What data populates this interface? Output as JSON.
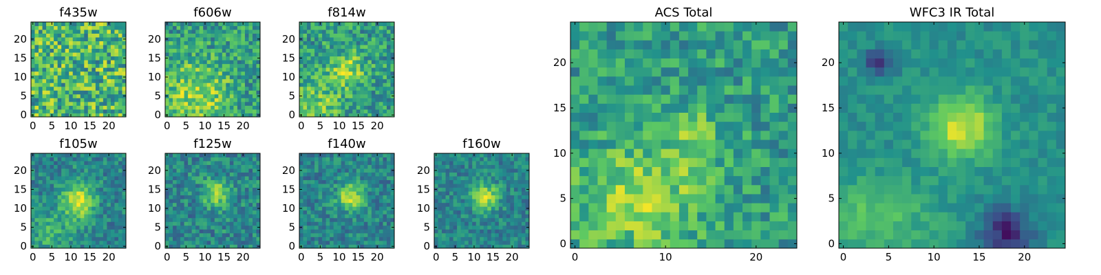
{
  "figure": {
    "colormap": "viridis",
    "colormap_stops": [
      "#440154",
      "#3b528b",
      "#21918c",
      "#5ec962",
      "#fde725"
    ]
  },
  "chart_data": [
    {
      "type": "heatmap",
      "title": "f435w",
      "grid_size": 25,
      "xlim": [
        0,
        24
      ],
      "ylim": [
        0,
        24
      ],
      "x_ticks": [
        0,
        5,
        10,
        15,
        20
      ],
      "y_ticks": [
        0,
        5,
        10,
        15,
        20
      ],
      "pattern": {
        "noise": 0.3,
        "base": 0.66,
        "blob": {
          "cx": 0,
          "cy": 0,
          "sx": 1,
          "sy": 1,
          "amp": 0
        },
        "extras": []
      }
    },
    {
      "type": "heatmap",
      "title": "f606w",
      "grid_size": 25,
      "xlim": [
        0,
        24
      ],
      "ylim": [
        0,
        24
      ],
      "x_ticks": [
        0,
        5,
        10,
        15,
        20
      ],
      "y_ticks": [
        0,
        5,
        10,
        15,
        20
      ],
      "pattern": {
        "noise": 0.22,
        "base": 0.55,
        "blob": {
          "cx": 8,
          "cy": 6,
          "sx": 6,
          "sy": 6,
          "amp": 0.3
        },
        "extras": []
      }
    },
    {
      "type": "heatmap",
      "title": "f814w",
      "grid_size": 25,
      "xlim": [
        0,
        24
      ],
      "ylim": [
        0,
        24
      ],
      "x_ticks": [
        0,
        5,
        10,
        15,
        20
      ],
      "y_ticks": [
        0,
        5,
        10,
        15,
        20
      ],
      "pattern": {
        "noise": 0.22,
        "base": 0.56,
        "blob": {
          "cx": 12,
          "cy": 12,
          "sx": 3,
          "sy": 3,
          "amp": 0.3
        },
        "extras": [
          {
            "cx": 4,
            "cy": 4,
            "sx": 5,
            "sy": 4,
            "amp": 0.2
          }
        ]
      }
    },
    {
      "type": "heatmap",
      "title": "f105w",
      "grid_size": 25,
      "xlim": [
        0,
        24
      ],
      "ylim": [
        0,
        24
      ],
      "x_ticks": [
        0,
        5,
        10,
        15,
        20
      ],
      "y_ticks": [
        0,
        5,
        10,
        15,
        20
      ],
      "pattern": {
        "noise": 0.16,
        "base": 0.45,
        "blob": {
          "cx": 12,
          "cy": 12,
          "sx": 3,
          "sy": 4,
          "amp": 0.45
        },
        "extras": [
          {
            "cx": 4,
            "cy": 4,
            "sx": 4,
            "sy": 4,
            "amp": 0.2
          }
        ]
      }
    },
    {
      "type": "heatmap",
      "title": "f125w",
      "grid_size": 25,
      "xlim": [
        0,
        24
      ],
      "ylim": [
        0,
        24
      ],
      "x_ticks": [
        0,
        5,
        10,
        15,
        20
      ],
      "y_ticks": [
        0,
        5,
        10,
        15,
        20
      ],
      "pattern": {
        "noise": 0.18,
        "base": 0.46,
        "blob": {
          "cx": 13,
          "cy": 14,
          "sx": 2.5,
          "sy": 2.5,
          "amp": 0.4
        },
        "extras": []
      }
    },
    {
      "type": "heatmap",
      "title": "f140w",
      "grid_size": 25,
      "xlim": [
        0,
        24
      ],
      "ylim": [
        0,
        24
      ],
      "x_ticks": [
        0,
        5,
        10,
        15,
        20
      ],
      "y_ticks": [
        0,
        5,
        10,
        15,
        20
      ],
      "pattern": {
        "noise": 0.16,
        "base": 0.45,
        "blob": {
          "cx": 13,
          "cy": 13,
          "sx": 2.5,
          "sy": 2.5,
          "amp": 0.45
        },
        "extras": []
      }
    },
    {
      "type": "heatmap",
      "title": "f160w",
      "grid_size": 25,
      "xlim": [
        0,
        24
      ],
      "ylim": [
        0,
        24
      ],
      "x_ticks": [
        0,
        5,
        10,
        15,
        20
      ],
      "y_ticks": [
        0,
        5,
        10,
        15,
        20
      ],
      "pattern": {
        "noise": 0.15,
        "base": 0.45,
        "blob": {
          "cx": 13,
          "cy": 13,
          "sx": 2.5,
          "sy": 2.5,
          "amp": 0.45
        },
        "extras": []
      }
    },
    {
      "type": "heatmap",
      "title": "ACS Total",
      "grid_size": 25,
      "xlim": [
        0,
        24
      ],
      "ylim": [
        0,
        24
      ],
      "x_ticks": [
        0,
        10,
        20
      ],
      "y_ticks": [
        0,
        5,
        10,
        15,
        20
      ],
      "pattern": {
        "noise": 0.18,
        "base": 0.55,
        "blob": {
          "cx": 7,
          "cy": 5,
          "sx": 5,
          "sy": 4,
          "amp": 0.3
        },
        "extras": [
          {
            "cx": 13,
            "cy": 12,
            "sx": 2.5,
            "sy": 2.5,
            "amp": 0.2
          }
        ]
      }
    },
    {
      "type": "heatmap",
      "title": "WFC3 IR Total",
      "grid_size": 25,
      "xlim": [
        0,
        24
      ],
      "ylim": [
        0,
        24
      ],
      "x_ticks": [
        0,
        5,
        10,
        15,
        20
      ],
      "y_ticks": [
        0,
        5,
        10,
        15,
        20
      ],
      "pattern": {
        "noise": 0.08,
        "base": 0.5,
        "blob": {
          "cx": 13,
          "cy": 13,
          "sx": 2.5,
          "sy": 2.5,
          "amp": 0.45
        },
        "extras": [
          {
            "cx": 3,
            "cy": 3,
            "sx": 5,
            "sy": 3,
            "amp": 0.2
          },
          {
            "cx": 18,
            "cy": 1,
            "sx": 2,
            "sy": 2,
            "amp": -0.4
          },
          {
            "cx": 4,
            "cy": 20,
            "sx": 1,
            "sy": 1,
            "amp": -0.4
          }
        ]
      }
    }
  ]
}
